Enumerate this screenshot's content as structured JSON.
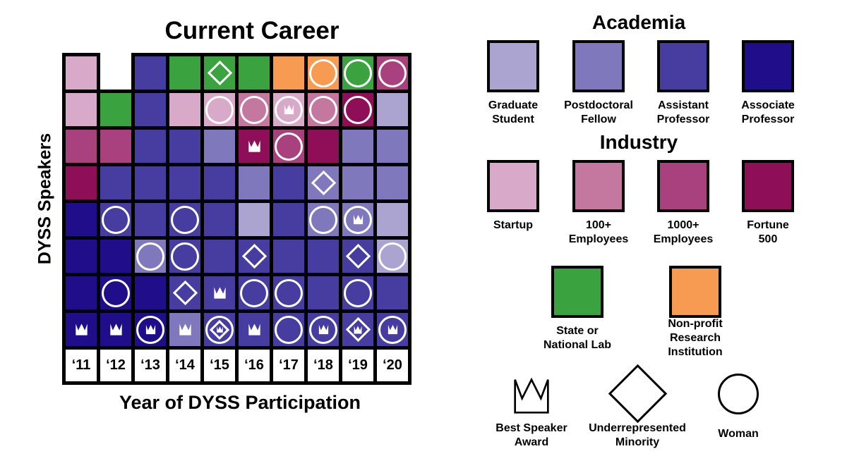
{
  "title": "Current Career",
  "x_axis_label": "Year of DYSS Participation",
  "y_axis_label": "DYSS Speakers",
  "palette": {
    "gs": "#ABA3D0",
    "pd": "#8078BC",
    "ap": "#473CA0",
    "asp": "#200D8A",
    "su": "#D9A9C9",
    "e100": "#C4779F",
    "e1000": "#A8417E",
    "f500": "#8E0E58",
    "lab": "#3AA23F",
    "npo": "#F89B52",
    "empty": "#FFFFFF",
    "symbol_color": "#FFFFFF",
    "border_color": "#000000"
  },
  "chart_data": {
    "type": "heatmap",
    "title": "Current Career",
    "xlabel": "Year of DYSS Participation",
    "ylabel": "DYSS Speakers",
    "x": [
      "‘11",
      "‘12",
      "‘13",
      "‘14",
      "‘15",
      "‘16",
      "‘17",
      "‘18",
      "‘19",
      "‘20"
    ],
    "n_rows": 8,
    "category_key": {
      "gs": "Graduate Student",
      "pd": "Postdoctoral Fellow",
      "ap": "Assistant Professor",
      "asp": "Associate Professor",
      "su": "Startup",
      "e100": "100+ Employees",
      "e1000": "1000+ Employees",
      "f500": "Fortune 500",
      "lab": "State or National Lab",
      "npo": "Non-profit Research Institution"
    },
    "symbol_key": {
      "c": "Woman",
      "d": "Underrepresented Minority",
      "k": "Best Speaker Award"
    },
    "rows": [
      [
        {
          "bg": "su"
        },
        null,
        {
          "bg": "ap"
        },
        {
          "bg": "lab"
        },
        {
          "bg": "lab",
          "sym": "d"
        },
        {
          "bg": "lab"
        },
        {
          "bg": "npo"
        },
        {
          "bg": "npo",
          "sym": "c"
        },
        {
          "bg": "lab",
          "sym": "c"
        },
        {
          "bg": "e1000",
          "sym": "c"
        }
      ],
      [
        {
          "bg": "su"
        },
        {
          "bg": "lab"
        },
        {
          "bg": "ap"
        },
        {
          "bg": "su"
        },
        {
          "bg": "su",
          "sym": "c"
        },
        {
          "bg": "e100",
          "sym": "c"
        },
        {
          "bg": "su",
          "sym": "ck"
        },
        {
          "bg": "e100",
          "sym": "c"
        },
        {
          "bg": "f500",
          "sym": "c"
        },
        {
          "bg": "gs"
        }
      ],
      [
        {
          "bg": "e1000"
        },
        {
          "bg": "e1000"
        },
        {
          "bg": "ap"
        },
        {
          "bg": "ap"
        },
        {
          "bg": "pd"
        },
        {
          "bg": "f500",
          "sym": "k"
        },
        {
          "bg": "e1000",
          "sym": "c"
        },
        {
          "bg": "f500"
        },
        {
          "bg": "pd"
        },
        {
          "bg": "pd"
        }
      ],
      [
        {
          "bg": "f500"
        },
        {
          "bg": "ap"
        },
        {
          "bg": "ap"
        },
        {
          "bg": "ap"
        },
        {
          "bg": "ap"
        },
        {
          "bg": "pd"
        },
        {
          "bg": "ap"
        },
        {
          "bg": "pd",
          "sym": "d"
        },
        {
          "bg": "pd"
        },
        {
          "bg": "pd"
        }
      ],
      [
        {
          "bg": "asp"
        },
        {
          "bg": "ap",
          "sym": "c"
        },
        {
          "bg": "ap"
        },
        {
          "bg": "ap",
          "sym": "c"
        },
        {
          "bg": "ap"
        },
        {
          "bg": "gs"
        },
        {
          "bg": "ap"
        },
        {
          "bg": "pd",
          "sym": "c"
        },
        {
          "bg": "pd",
          "sym": "ck"
        },
        {
          "bg": "gs"
        }
      ],
      [
        {
          "bg": "asp"
        },
        {
          "bg": "asp"
        },
        {
          "bg": "pd",
          "sym": "c"
        },
        {
          "bg": "ap",
          "sym": "c"
        },
        {
          "bg": "ap"
        },
        {
          "bg": "ap",
          "sym": "d"
        },
        {
          "bg": "ap"
        },
        {
          "bg": "ap"
        },
        {
          "bg": "ap",
          "sym": "d"
        },
        {
          "bg": "gs",
          "sym": "c"
        }
      ],
      [
        {
          "bg": "asp"
        },
        {
          "bg": "asp",
          "sym": "c"
        },
        {
          "bg": "asp"
        },
        {
          "bg": "ap",
          "sym": "d"
        },
        {
          "bg": "ap",
          "sym": "k"
        },
        {
          "bg": "ap",
          "sym": "c"
        },
        {
          "bg": "ap",
          "sym": "c"
        },
        {
          "bg": "ap"
        },
        {
          "bg": "ap",
          "sym": "c"
        },
        {
          "bg": "ap"
        }
      ],
      [
        {
          "bg": "asp",
          "sym": "k"
        },
        {
          "bg": "asp",
          "sym": "k"
        },
        {
          "bg": "asp",
          "sym": "ck"
        },
        {
          "bg": "pd",
          "sym": "k"
        },
        {
          "bg": "ap",
          "sym": "cdk"
        },
        {
          "bg": "ap",
          "sym": "k"
        },
        {
          "bg": "ap",
          "sym": "c"
        },
        {
          "bg": "ap",
          "sym": "ck"
        },
        {
          "bg": "ap",
          "sym": "dk"
        },
        {
          "bg": "ap",
          "sym": "ck"
        }
      ]
    ]
  },
  "legend": {
    "academia": {
      "title": "Academia",
      "items": [
        {
          "label": "Graduate Student",
          "key": "gs"
        },
        {
          "label": "Postdoctoral Fellow",
          "key": "pd"
        },
        {
          "label": "Assistant Professor",
          "key": "ap"
        },
        {
          "label": "Associate Professor",
          "key": "asp"
        }
      ]
    },
    "industry": {
      "title": "Industry",
      "items": [
        {
          "label": "Startup",
          "key": "su"
        },
        {
          "label": "100+ Employees",
          "key": "e100"
        },
        {
          "label": "1000+ Employees",
          "key": "e1000"
        },
        {
          "label": "Fortune 500",
          "key": "f500"
        }
      ]
    },
    "institutions": [
      {
        "label": "State or National Lab",
        "key": "lab"
      },
      {
        "label": "Non-profit Research Institution",
        "key": "npo"
      }
    ],
    "symbols": [
      {
        "label": "Best Speaker Award",
        "symbol": "crown"
      },
      {
        "label": "Underrepresented Minority",
        "symbol": "diamond"
      },
      {
        "label": "Woman",
        "symbol": "circle"
      }
    ]
  }
}
